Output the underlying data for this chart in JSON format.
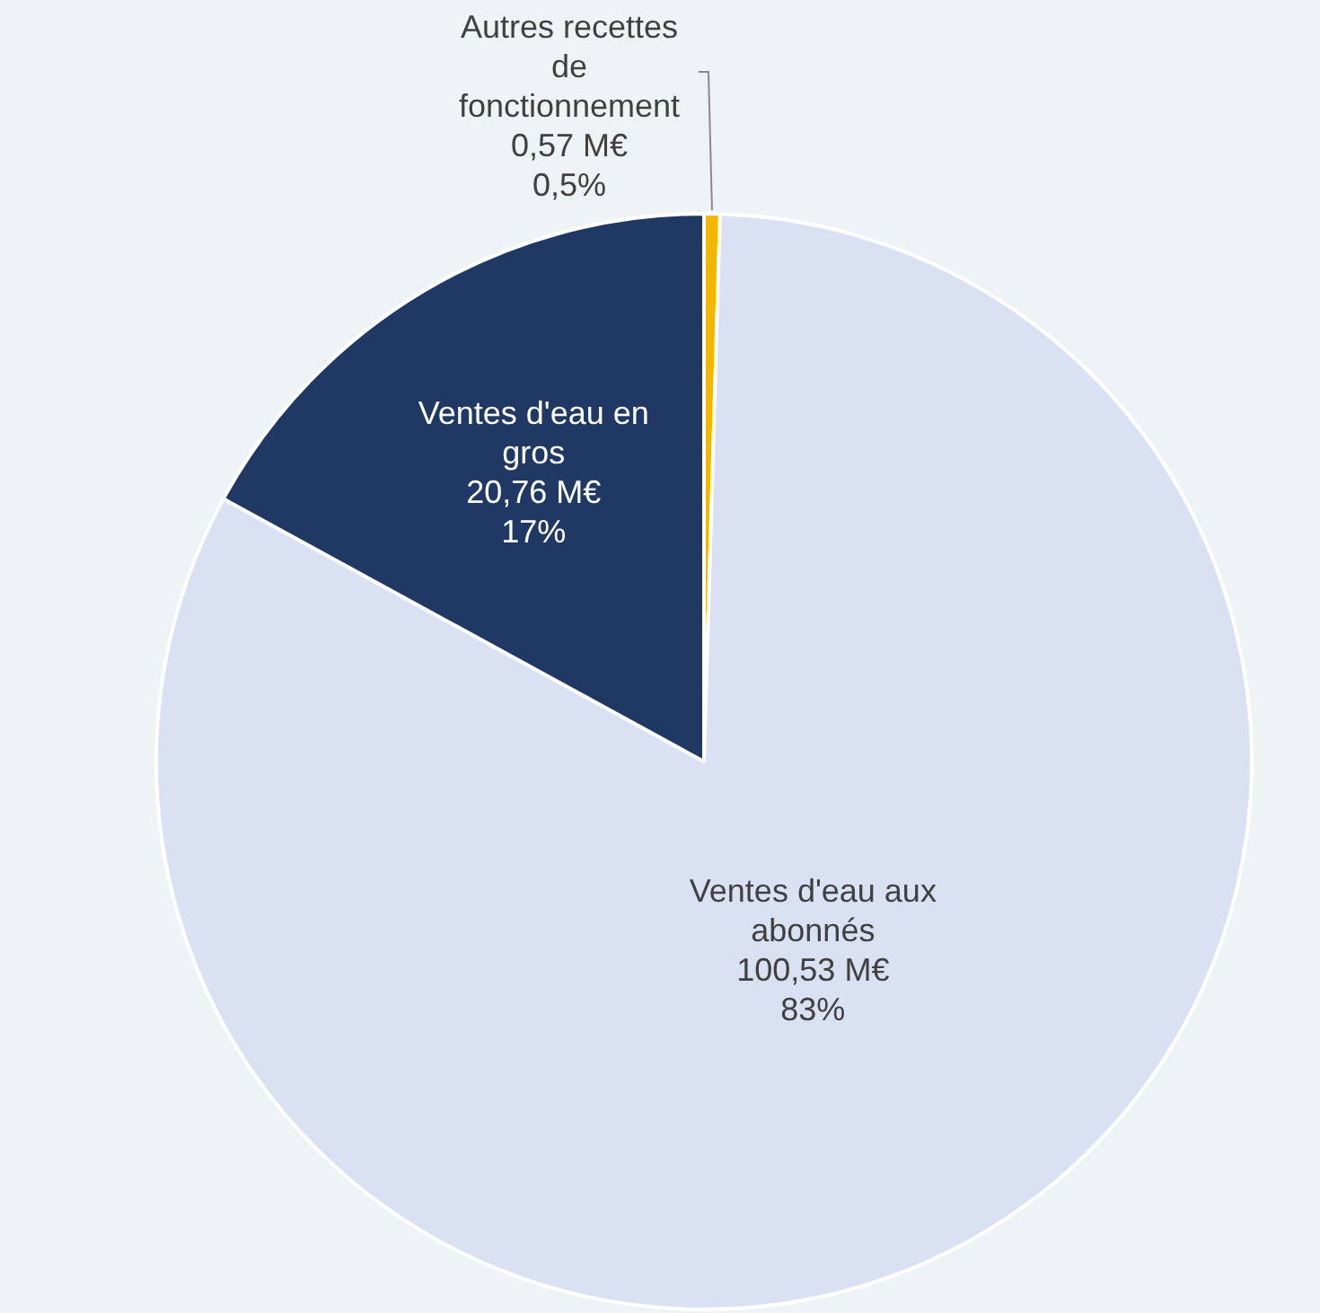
{
  "chart_data": {
    "type": "pie",
    "categories": [
      "Autres recettes de fonctionnement",
      "Ventes d'eau aux abonnés",
      "Ventes d'eau en gros"
    ],
    "values": [
      0.57,
      100.53,
      20.76
    ],
    "colors": [
      "#f2b705",
      "#dae1f3",
      "#1f3864"
    ],
    "value_labels": [
      "0,57 M€\n0,5%",
      "100,53 M€\n83%",
      "20,76 M€\n17%"
    ],
    "legend": false
  }
}
